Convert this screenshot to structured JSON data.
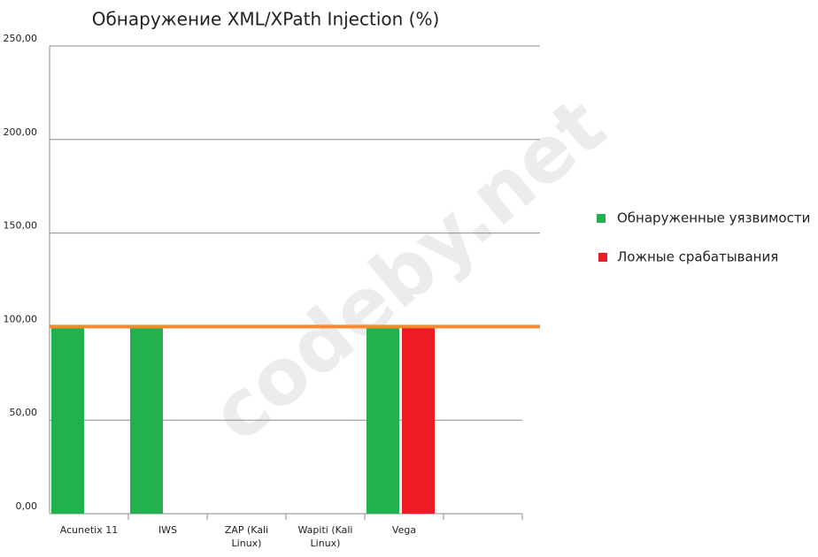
{
  "chart_data": {
    "type": "bar",
    "title": "Обнаружение XML/XPath Injection (%)",
    "categories": [
      "Acunetix 11",
      "IWS",
      "ZAP (Kali Linux)",
      "Wapiti (Kali Linux)",
      "Vega",
      null
    ],
    "series": [
      {
        "name": "Обнаруженные уязвимости",
        "color": "#22b14c",
        "values": [
          100,
          100,
          0,
          0,
          100,
          null
        ]
      },
      {
        "name": "Ложные срабатывания",
        "color": "#ed1c24",
        "values": [
          0,
          0,
          0,
          0,
          100,
          null
        ]
      }
    ],
    "reference_line": {
      "value": 100,
      "color": "#f58a2e"
    },
    "ylim": [
      0,
      250
    ],
    "yticks": [
      {
        "value": 0,
        "label": "0,00"
      },
      {
        "value": 50,
        "label": "50,00"
      },
      {
        "value": 100,
        "label": "100,00"
      },
      {
        "value": 150,
        "label": "150,00"
      },
      {
        "value": 200,
        "label": "200,00"
      },
      {
        "value": 250,
        "label": "250,00"
      }
    ],
    "grid": true,
    "legend": "right",
    "watermark": "codeby.net"
  }
}
